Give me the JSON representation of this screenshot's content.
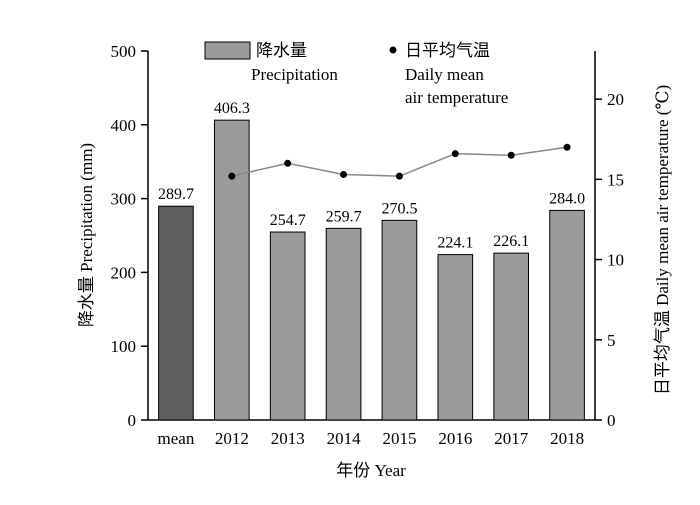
{
  "chart_data": {
    "type": "bar",
    "categories": [
      "mean",
      "2012",
      "2013",
      "2014",
      "2015",
      "2016",
      "2017",
      "2018"
    ],
    "series": [
      {
        "name": "降水量 Precipitation",
        "type": "bar",
        "axis": "left",
        "values": [
          289.7,
          406.3,
          254.7,
          259.7,
          270.5,
          224.1,
          226.1,
          284.0
        ],
        "value_labels": [
          "289.7",
          "406.3",
          "254.7",
          "259.7",
          "270.5",
          "224.1",
          "226.1",
          "284.0"
        ],
        "colors": [
          "#5e5e5e",
          "#9b9b9b",
          "#9b9b9b",
          "#9b9b9b",
          "#9b9b9b",
          "#9b9b9b",
          "#9b9b9b",
          "#9b9b9b"
        ]
      },
      {
        "name": "日平均气温 Daily mean air temperature",
        "type": "line",
        "axis": "right",
        "x": [
          "2012",
          "2013",
          "2014",
          "2015",
          "2016",
          "2017",
          "2018"
        ],
        "values": [
          15.2,
          16.0,
          15.3,
          15.2,
          16.6,
          16.5,
          17.0
        ],
        "color": "#888888",
        "marker_color": "#000000"
      }
    ],
    "xlabel": "年份 Year",
    "ylabel_left": "降水量 Precipitation (mm)",
    "ylabel_right": "日平均气温 Daily mean air temperature (℃)",
    "ylim_left": [
      0,
      500
    ],
    "ylim_right": [
      0,
      23
    ],
    "yticks_left": [
      0,
      100,
      200,
      300,
      400,
      500
    ],
    "yticks_right": [
      0,
      5,
      10,
      15,
      20
    ],
    "grid": false,
    "legend_position": "top-center",
    "legend": {
      "bar_label_line1": "降水量",
      "bar_label_line2": "Precipitation",
      "line_label_line1": "日平均气温",
      "line_label_line2": "Daily mean",
      "line_label_line3": "air temperature"
    }
  }
}
